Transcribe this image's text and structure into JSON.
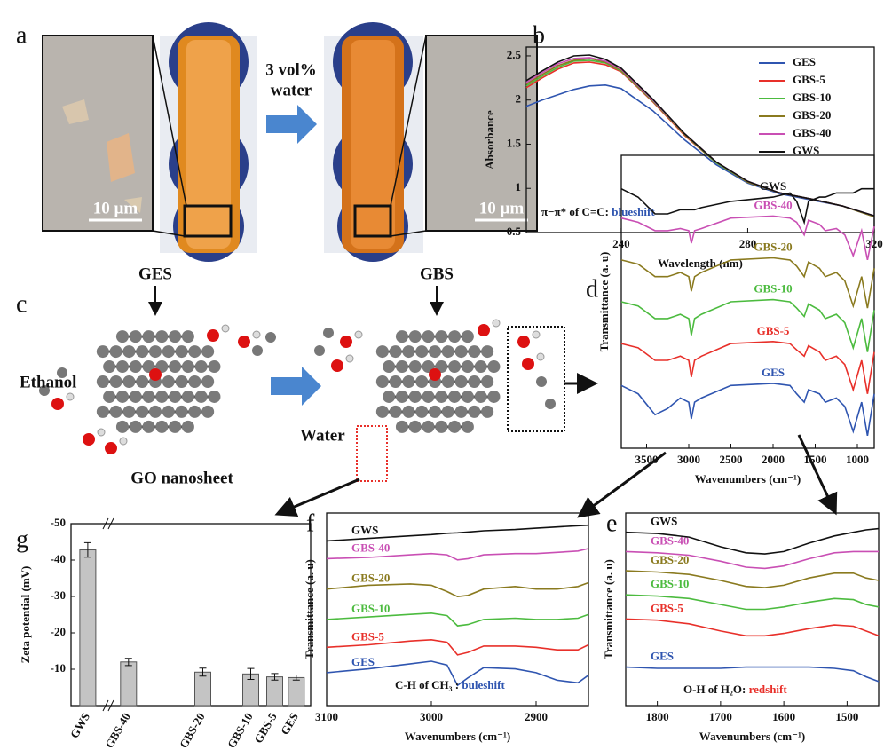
{
  "figure": {
    "panel_a": "a",
    "scale_bar_left": "10 µm",
    "scale_bar_right": "10 µm",
    "arrow_text_1": "3 vol%",
    "arrow_text_2": "water",
    "label_ges": "GES",
    "label_gbs": "GBS",
    "panel_c": "c",
    "ethanol": "Ethanol",
    "go_nanosheet": "GO nanosheet",
    "water": "Water"
  },
  "chart_data": [
    {
      "type": "line",
      "panel": "b",
      "xlabel": "Wavelength (nm)",
      "ylabel": "Absorbance",
      "legend": "upper right",
      "annotation": "π−π* of C=C: ",
      "annotation_highlight": "blueshift",
      "xlim": [
        210,
        320
      ],
      "xticks": [
        240,
        280,
        320
      ],
      "ylim": [
        0.5,
        2.6
      ],
      "yticks": [
        0.5,
        1.0,
        1.5,
        2.0,
        2.5
      ],
      "x": [
        210,
        215,
        220,
        225,
        230,
        235,
        240,
        250,
        260,
        270,
        280,
        290,
        300,
        310,
        320
      ],
      "series": [
        {
          "name": "GES",
          "color": "#2f55b0",
          "values": [
            1.93,
            2.0,
            2.06,
            2.12,
            2.16,
            2.17,
            2.13,
            1.88,
            1.55,
            1.27,
            1.06,
            0.94,
            0.87,
            0.8,
            0.68
          ]
        },
        {
          "name": "GBS-5",
          "color": "#e8302a",
          "values": [
            2.14,
            2.25,
            2.35,
            2.42,
            2.43,
            2.4,
            2.32,
            1.98,
            1.6,
            1.29,
            1.07,
            0.95,
            0.88,
            0.8,
            0.68
          ]
        },
        {
          "name": "GBS-10",
          "color": "#4cbb3f",
          "values": [
            2.16,
            2.27,
            2.37,
            2.44,
            2.45,
            2.42,
            2.33,
            1.99,
            1.61,
            1.29,
            1.07,
            0.95,
            0.88,
            0.8,
            0.68
          ]
        },
        {
          "name": "GBS-20",
          "color": "#8a7a1f",
          "values": [
            2.18,
            2.29,
            2.39,
            2.45,
            2.47,
            2.43,
            2.34,
            2.0,
            1.61,
            1.3,
            1.07,
            0.95,
            0.88,
            0.8,
            0.68
          ]
        },
        {
          "name": "GBS-40",
          "color": "#c94fb4",
          "values": [
            2.2,
            2.31,
            2.41,
            2.47,
            2.48,
            2.44,
            2.35,
            2.0,
            1.62,
            1.3,
            1.08,
            0.95,
            0.88,
            0.8,
            0.69
          ]
        },
        {
          "name": "GWS",
          "color": "#111111",
          "values": [
            2.22,
            2.33,
            2.43,
            2.5,
            2.51,
            2.46,
            2.36,
            2.01,
            1.62,
            1.3,
            1.08,
            0.95,
            0.88,
            0.8,
            0.69
          ]
        }
      ]
    },
    {
      "type": "line",
      "panel": "d",
      "xlabel": "Wavenumbers (cm⁻¹)",
      "ylabel": "Transmittance (a. u)",
      "legend": "inline",
      "xlim": [
        3800,
        800
      ],
      "xticks": [
        3500,
        3000,
        2500,
        2000,
        1500,
        1000
      ],
      "ylim": [
        -0.6,
        6.4
      ],
      "x": [
        3800,
        3600,
        3400,
        3250,
        3100,
        3000,
        2970,
        2930,
        2850,
        2500,
        2000,
        1800,
        1720,
        1630,
        1580,
        1450,
        1380,
        1250,
        1150,
        1050,
        950,
        880,
        800
      ],
      "series": [
        {
          "name": "GES",
          "color": "#2f55b0",
          "values": [
            0.9,
            0.7,
            0.2,
            0.35,
            0.6,
            0.5,
            0.1,
            0.5,
            0.6,
            0.9,
            0.95,
            0.9,
            0.7,
            0.5,
            0.8,
            0.7,
            0.5,
            0.6,
            0.4,
            -0.2,
            0.5,
            -0.3,
            0.7
          ]
        },
        {
          "name": "GBS-5",
          "color": "#e8302a",
          "values": [
            1.9,
            1.8,
            1.5,
            1.5,
            1.6,
            1.5,
            1.1,
            1.5,
            1.6,
            1.9,
            1.95,
            1.9,
            1.75,
            1.6,
            1.85,
            1.7,
            1.5,
            1.6,
            1.4,
            0.8,
            1.5,
            0.7,
            1.7
          ]
        },
        {
          "name": "GBS-10",
          "color": "#4cbb3f",
          "values": [
            2.9,
            2.8,
            2.5,
            2.5,
            2.6,
            2.5,
            2.1,
            2.5,
            2.6,
            2.9,
            2.95,
            2.9,
            2.75,
            2.55,
            2.85,
            2.7,
            2.5,
            2.6,
            2.4,
            1.8,
            2.5,
            1.7,
            2.7
          ]
        },
        {
          "name": "GBS-20",
          "color": "#8a7a1f",
          "values": [
            3.9,
            3.8,
            3.5,
            3.5,
            3.6,
            3.5,
            3.15,
            3.5,
            3.6,
            3.9,
            3.95,
            3.9,
            3.75,
            3.5,
            3.85,
            3.7,
            3.5,
            3.6,
            3.4,
            2.8,
            3.5,
            2.75,
            3.7
          ]
        },
        {
          "name": "GBS-40",
          "color": "#c94fb4",
          "values": [
            4.9,
            4.8,
            4.6,
            4.6,
            4.65,
            4.6,
            4.3,
            4.6,
            4.65,
            4.9,
            4.95,
            4.9,
            4.8,
            4.5,
            4.85,
            4.75,
            4.6,
            4.65,
            4.5,
            4.0,
            4.6,
            3.9,
            4.7
          ]
        },
        {
          "name": "GWS",
          "color": "#111111",
          "values": [
            5.6,
            5.4,
            5.0,
            5.0,
            5.1,
            5.1,
            5.1,
            5.1,
            5.15,
            5.3,
            5.4,
            5.5,
            5.3,
            4.8,
            5.3,
            5.4,
            5.4,
            5.5,
            5.5,
            5.5,
            5.6,
            5.6,
            5.6
          ]
        }
      ]
    },
    {
      "type": "bar",
      "panel": "g",
      "ylabel": "Zeta potential (mV)",
      "color": "#c4c4c4",
      "categories": [
        "GWS",
        "GBS-40",
        "GBS-20",
        "GBS-10",
        "GBS-5",
        "GES"
      ],
      "values": [
        -42.8,
        -12,
        -9.2,
        -8.7,
        -7.9,
        -7.7
      ],
      "errors": [
        2.0,
        1.0,
        1.1,
        1.5,
        0.9,
        0.7
      ],
      "ylim": [
        0,
        -50
      ],
      "yticks": [
        -50,
        -40,
        -30,
        -20,
        -10
      ]
    },
    {
      "type": "line",
      "panel": "f",
      "xlabel": "Wavenumbers (cm⁻¹)",
      "ylabel": "Transmittance (a. u)",
      "legend": "inline",
      "annotation": "C-H of CH₃ : ",
      "annotation_highlight": "buleshift",
      "xlim": [
        3100,
        2850
      ],
      "xticks": [
        3100,
        3000,
        2900
      ],
      "ylim": [
        0,
        7.6
      ],
      "x": [
        3100,
        3060,
        3020,
        3000,
        2985,
        2975,
        2965,
        2950,
        2920,
        2900,
        2880,
        2860,
        2850
      ],
      "series": [
        {
          "name": "GES",
          "color": "#2f55b0",
          "values": [
            1.3,
            1.45,
            1.65,
            1.75,
            1.6,
            0.8,
            1.1,
            1.5,
            1.45,
            1.3,
            1.0,
            0.9,
            1.2
          ]
        },
        {
          "name": "GBS-5",
          "color": "#e8302a",
          "values": [
            2.3,
            2.4,
            2.55,
            2.6,
            2.5,
            2.0,
            2.1,
            2.35,
            2.35,
            2.3,
            2.2,
            2.2,
            2.4
          ]
        },
        {
          "name": "GBS-10",
          "color": "#4cbb3f",
          "values": [
            3.4,
            3.5,
            3.6,
            3.65,
            3.55,
            3.15,
            3.2,
            3.4,
            3.45,
            3.4,
            3.4,
            3.45,
            3.6
          ]
        },
        {
          "name": "GBS-20",
          "color": "#8a7a1f",
          "values": [
            4.6,
            4.75,
            4.8,
            4.75,
            4.5,
            4.3,
            4.35,
            4.6,
            4.7,
            4.6,
            4.6,
            4.7,
            4.85
          ]
        },
        {
          "name": "GBS-40",
          "color": "#c94fb4",
          "values": [
            5.8,
            5.85,
            5.95,
            6.0,
            5.95,
            5.75,
            5.8,
            5.95,
            6.0,
            6.0,
            6.05,
            6.1,
            6.2
          ]
        },
        {
          "name": "GWS",
          "color": "#111111",
          "values": [
            6.5,
            6.6,
            6.7,
            6.75,
            6.8,
            6.82,
            6.85,
            6.9,
            6.95,
            7.0,
            7.05,
            7.1,
            7.12
          ]
        }
      ]
    },
    {
      "type": "line",
      "panel": "e",
      "xlabel": "Wavenumbers (cm⁻¹)",
      "ylabel": "Transmittance (a. u)",
      "legend": "inline",
      "annotation": "O-H of H₂O: ",
      "annotation_highlight": "redshift",
      "xlim": [
        1850,
        1450
      ],
      "xticks": [
        1800,
        1700,
        1600,
        1500
      ],
      "ylim": [
        0,
        8
      ],
      "x": [
        1850,
        1800,
        1750,
        1700,
        1660,
        1630,
        1600,
        1560,
        1520,
        1490,
        1470,
        1450
      ],
      "series": [
        {
          "name": "GES",
          "color": "#2f55b0",
          "values": [
            1.6,
            1.55,
            1.55,
            1.55,
            1.6,
            1.6,
            1.6,
            1.6,
            1.55,
            1.45,
            1.2,
            1.0
          ]
        },
        {
          "name": "GBS-5",
          "color": "#e8302a",
          "values": [
            3.6,
            3.55,
            3.4,
            3.1,
            2.9,
            2.9,
            3.0,
            3.2,
            3.35,
            3.3,
            3.1,
            2.9
          ]
        },
        {
          "name": "GBS-10",
          "color": "#4cbb3f",
          "values": [
            4.6,
            4.55,
            4.45,
            4.2,
            4.0,
            4.0,
            4.1,
            4.3,
            4.45,
            4.4,
            4.2,
            4.1
          ]
        },
        {
          "name": "GBS-20",
          "color": "#8a7a1f",
          "values": [
            5.6,
            5.55,
            5.45,
            5.2,
            4.95,
            4.9,
            5.0,
            5.3,
            5.5,
            5.5,
            5.3,
            5.2
          ]
        },
        {
          "name": "GBS-40",
          "color": "#c94fb4",
          "values": [
            6.4,
            6.35,
            6.25,
            6.0,
            5.75,
            5.7,
            5.8,
            6.1,
            6.35,
            6.4,
            6.4,
            6.4
          ]
        },
        {
          "name": "GWS",
          "color": "#111111",
          "values": [
            7.2,
            7.15,
            7.0,
            6.6,
            6.35,
            6.3,
            6.4,
            6.75,
            7.05,
            7.2,
            7.3,
            7.35
          ]
        }
      ]
    }
  ]
}
